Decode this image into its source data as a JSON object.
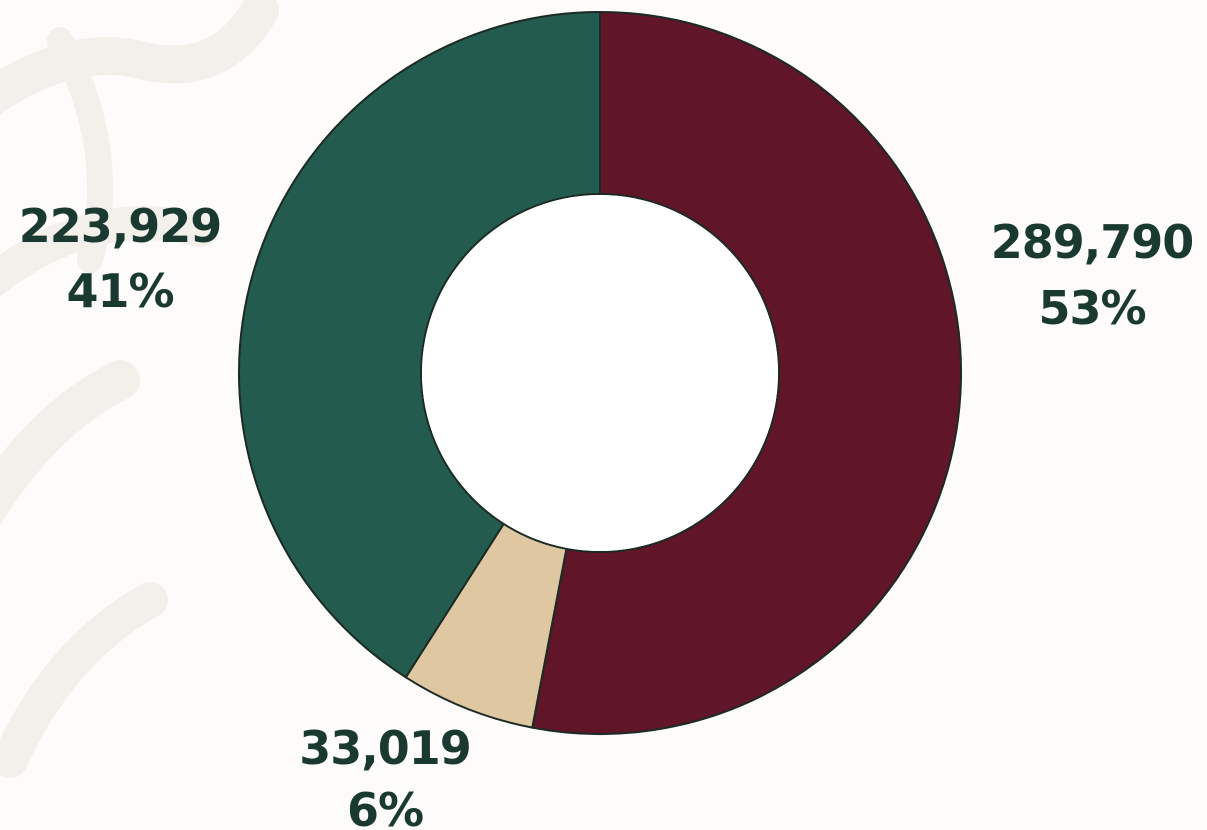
{
  "chart_data": {
    "type": "pie",
    "donut": true,
    "title": "",
    "legend": "none",
    "series": [
      {
        "values": [
          289790,
          33019,
          223929
        ],
        "labels": [
          "289,790",
          "33,019",
          "223,929"
        ],
        "percent_labels": [
          "53%",
          "6%",
          "41%"
        ],
        "colors": [
          "#611529",
          "#dfc8a1",
          "#235b4e"
        ]
      }
    ]
  },
  "colors": {
    "label_text": "#1a3a31",
    "slice_stroke": "#1b2a24",
    "background": "#fdfcfa",
    "watermark": "#f3f0eb"
  }
}
